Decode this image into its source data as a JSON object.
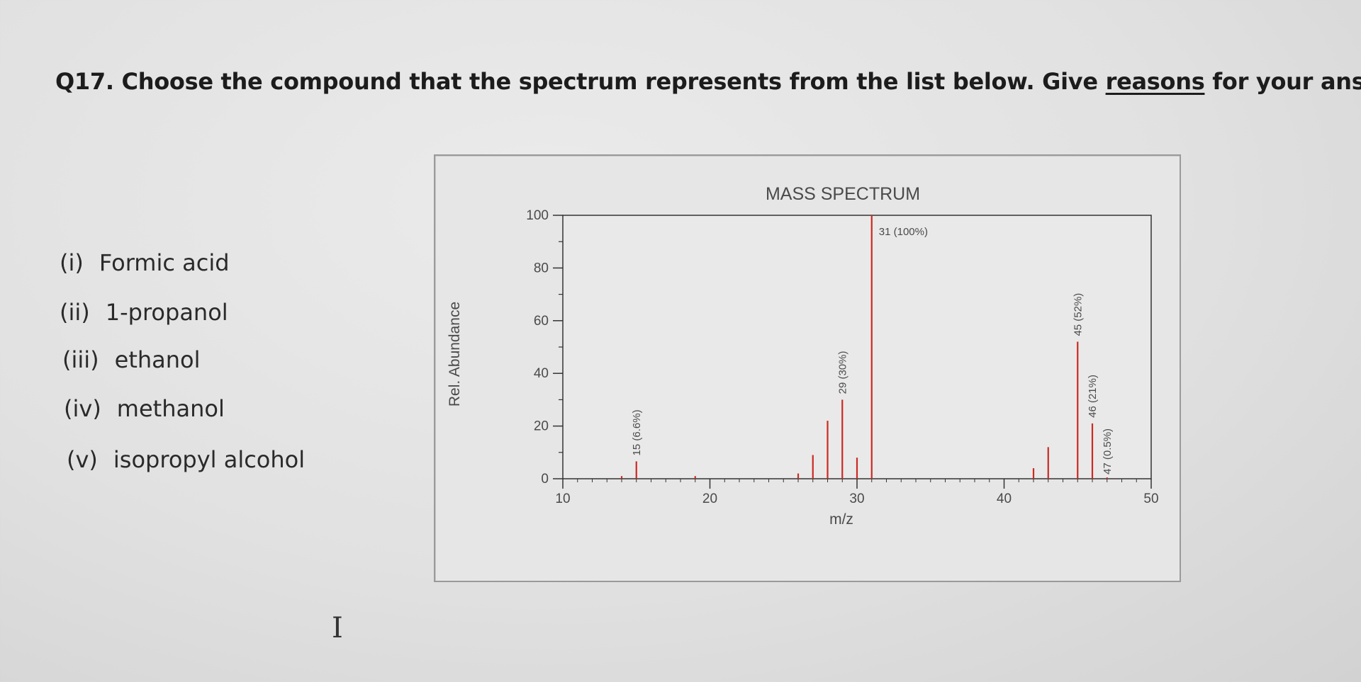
{
  "question": {
    "prefix": "Q17. Choose the compound that the spectrum represents from the list below. Give ",
    "underlined": "reasons",
    "suffix": " for your answer."
  },
  "options": [
    {
      "num": "(i)",
      "label": "Formic acid"
    },
    {
      "num": "(ii)",
      "label": "1-propanol"
    },
    {
      "num": "(iii)",
      "label": "ethanol"
    },
    {
      "num": "(iv)",
      "label": "methanol"
    },
    {
      "num": "(v)",
      "label": "isopropyl alcohol"
    }
  ],
  "cursor_glyph": "I",
  "colors": {
    "peak": "#cc2a22",
    "axis": "#333333",
    "text": "#4a4a4a"
  },
  "chart_data": {
    "type": "bar",
    "title": "MASS SPECTRUM",
    "xlabel": "m/z",
    "ylabel": "Rel. Abundance",
    "xlim": [
      10,
      50
    ],
    "ylim": [
      0,
      100
    ],
    "xticks": [
      10,
      20,
      30,
      40,
      50
    ],
    "yticks": [
      0,
      20,
      40,
      60,
      80,
      100
    ],
    "grid": false,
    "peaks": [
      {
        "mz": 14,
        "value": 1
      },
      {
        "mz": 15,
        "value": 6.6,
        "label": "15 (6.6%)"
      },
      {
        "mz": 19,
        "value": 1
      },
      {
        "mz": 26,
        "value": 2
      },
      {
        "mz": 27,
        "value": 9
      },
      {
        "mz": 28,
        "value": 22
      },
      {
        "mz": 29,
        "value": 30,
        "label": "29 (30%)"
      },
      {
        "mz": 30,
        "value": 8
      },
      {
        "mz": 31,
        "value": 100,
        "label": "31 (100%)"
      },
      {
        "mz": 42,
        "value": 4
      },
      {
        "mz": 43,
        "value": 12
      },
      {
        "mz": 45,
        "value": 52,
        "label": "45 (52%)"
      },
      {
        "mz": 46,
        "value": 21,
        "label": "46 (21%)"
      },
      {
        "mz": 47,
        "value": 0.5,
        "label": "47 (0.5%)"
      }
    ]
  }
}
